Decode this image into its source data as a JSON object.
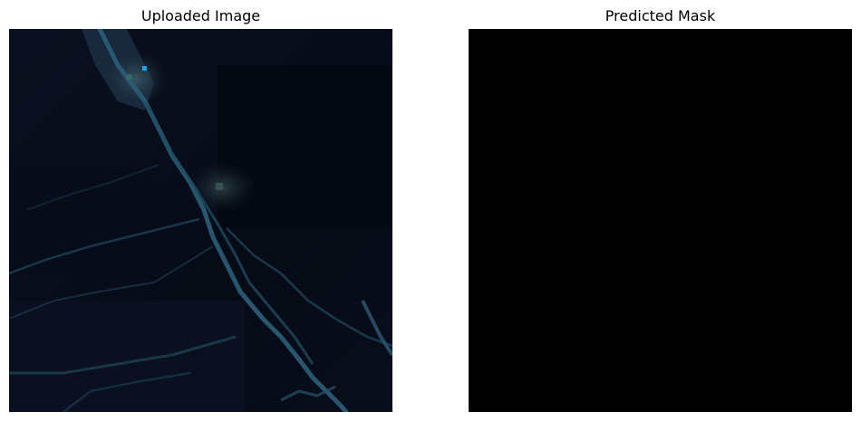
{
  "panels": {
    "uploaded": {
      "title": "Uploaded Image",
      "content": "satellite-image"
    },
    "predicted": {
      "title": "Predicted Mask",
      "content": "empty-mask"
    }
  },
  "colors": {
    "background": "#ffffff",
    "image_base": "#050a14",
    "river": "#2b5e78",
    "bright_spot": "#1ea0ff",
    "mask": "#000000"
  }
}
